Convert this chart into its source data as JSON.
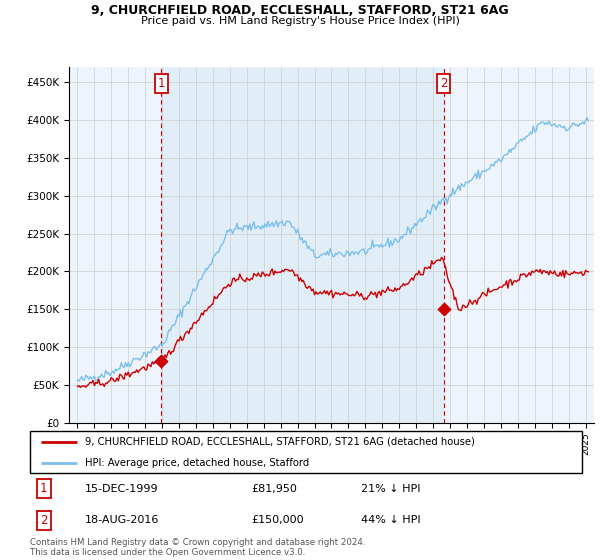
{
  "title_line1": "9, CHURCHFIELD ROAD, ECCLESHALL, STAFFORD, ST21 6AG",
  "title_line2": "Price paid vs. HM Land Registry's House Price Index (HPI)",
  "legend_line1": "9, CHURCHFIELD ROAD, ECCLESHALL, STAFFORD, ST21 6AG (detached house)",
  "legend_line2": "HPI: Average price, detached house, Stafford",
  "footnote": "Contains HM Land Registry data © Crown copyright and database right 2024.\nThis data is licensed under the Open Government Licence v3.0.",
  "annotation1_date": "15-DEC-1999",
  "annotation1_price": "£81,950",
  "annotation1_hpi": "21% ↓ HPI",
  "annotation2_date": "18-AUG-2016",
  "annotation2_price": "£150,000",
  "annotation2_hpi": "44% ↓ HPI",
  "sale1_x": 1999.96,
  "sale1_y": 81950,
  "sale2_x": 2016.63,
  "sale2_y": 150000,
  "hpi_color": "#7bbfea",
  "hpi_fill_color": "#daeaf7",
  "sale_color": "#cc0000",
  "dashed_line_color": "#cc0000",
  "ylim_min": 0,
  "ylim_max": 470000,
  "yticks": [
    0,
    50000,
    100000,
    150000,
    200000,
    250000,
    300000,
    350000,
    400000,
    450000
  ],
  "ytick_labels": [
    "£0",
    "£50K",
    "£100K",
    "£150K",
    "£200K",
    "£250K",
    "£300K",
    "£350K",
    "£400K",
    "£450K"
  ],
  "xlim_min": 1994.5,
  "xlim_max": 2025.5,
  "background_color": "#ffffff",
  "grid_color": "#cccccc",
  "chart_bg_color": "#edf4fb"
}
